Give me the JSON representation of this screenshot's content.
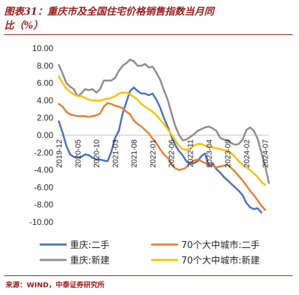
{
  "title": "图表31：重庆市及全国住宅价格销售指数当月同",
  "title_line2": "比（%）",
  "source": "来源：WIND，中泰证券研究所",
  "chart_data": {
    "type": "line",
    "ylim": [
      -10,
      10
    ],
    "y_ticks": [
      "10.00",
      "8.00",
      "6.00",
      "4.00",
      "2.00",
      "0.00",
      "-2.00",
      "-4.00",
      "-6.00",
      "-8.00",
      "-10.00"
    ],
    "x_ticks": [
      "2019-12",
      "2020-05",
      "2020-10",
      "2021-03",
      "2021-08",
      "2022-01",
      "2022-06",
      "2022-11",
      "2023-04",
      "2023-09",
      "2024-02",
      "2024-07"
    ],
    "grid": false,
    "legend_position": "bottom",
    "series": [
      {
        "name": "重庆:二手",
        "color": "#4472c4",
        "values": [
          1.6,
          0.3,
          -1.2,
          -2.2,
          -2.5,
          -2.6,
          -2.5,
          -2.2,
          -2.3,
          -2.6,
          -2.8,
          -2.8,
          -2.9,
          -3.0,
          -1.9,
          -0.3,
          0.5,
          2.5,
          3.8,
          5.1,
          5.5,
          5.1,
          4.8,
          4.8,
          4.6,
          4.8,
          4.1,
          3.2,
          2.0,
          1.0,
          -0.1,
          -1.1,
          -1.8,
          -2.3,
          -3.0,
          -3.3,
          -3.2,
          -3.0,
          -2.4,
          -2.1,
          -3.6,
          -3.2,
          -3.9,
          -4.3,
          -4.8,
          -5.2,
          -5.6,
          -6.0,
          -6.4,
          -6.9,
          -7.8,
          -8.3,
          -8.5,
          -8.4,
          -8.9
        ]
      },
      {
        "name": "重庆:新建",
        "color": "#8c8c8c",
        "values": [
          8.1,
          7.1,
          6.0,
          5.6,
          5.3,
          4.5,
          4.8,
          5.3,
          5.2,
          5.3,
          4.9,
          5.3,
          6.3,
          6.3,
          6.3,
          6.6,
          7.4,
          8.0,
          8.3,
          8.7,
          8.5,
          8.0,
          8.0,
          8.2,
          7.8,
          7.9,
          7.2,
          6.4,
          5.2,
          4.1,
          2.6,
          1.1,
          0.1,
          -0.6,
          -0.5,
          -0.2,
          0.1,
          0.5,
          0.7,
          0.9,
          1.0,
          0.8,
          0.5,
          -0.3,
          -0.5,
          -0.6,
          -0.9,
          -1.1,
          -1.0,
          -0.5,
          0.6,
          0.9,
          0.5,
          -0.4,
          -2.0,
          -3.5,
          -5.5
        ]
      },
      {
        "name": "70个大中城市:二手",
        "color": "#ed7d31",
        "values": [
          3.6,
          3.3,
          2.7,
          2.4,
          2.3,
          2.2,
          2.2,
          2.2,
          2.1,
          2.2,
          2.3,
          2.5,
          3.3,
          3.7,
          3.6,
          3.4,
          3.3,
          3.1,
          2.7,
          2.4,
          1.7,
          1.3,
          1.0,
          0.6,
          0.2,
          -0.4,
          -0.9,
          -1.6,
          -2.2,
          -2.6,
          -3.3,
          -3.8,
          -4.0,
          -3.9,
          -3.7,
          -3.2,
          -2.9,
          -2.8,
          -3.0,
          -3.2,
          -3.3,
          -3.5,
          -3.7,
          -3.6,
          -3.5,
          -3.4,
          -3.8,
          -4.2,
          -4.7,
          -5.2,
          -5.8,
          -6.4,
          -6.9,
          -7.5,
          -8.1,
          -8.6
        ]
      },
      {
        "name": "70个大中城市:新建",
        "color": "#ffc000",
        "values": [
          6.8,
          6.0,
          5.4,
          5.0,
          4.7,
          4.5,
          4.5,
          4.3,
          4.1,
          4.0,
          4.0,
          4.0,
          4.1,
          4.2,
          4.3,
          4.5,
          4.8,
          4.9,
          4.9,
          4.7,
          4.4,
          4.1,
          3.6,
          3.3,
          3.0,
          2.7,
          2.3,
          1.8,
          1.3,
          0.7,
          0.1,
          -0.6,
          -1.2,
          -1.6,
          -1.7,
          -1.5,
          -1.2,
          -1.0,
          -1.0,
          -1.2,
          -1.3,
          -1.4,
          -1.5,
          -1.6,
          -1.7,
          -1.8,
          -2.1,
          -2.5,
          -3.0,
          -3.4,
          -3.7,
          -4.0,
          -4.4,
          -4.8,
          -5.4,
          -5.7
        ]
      }
    ]
  }
}
